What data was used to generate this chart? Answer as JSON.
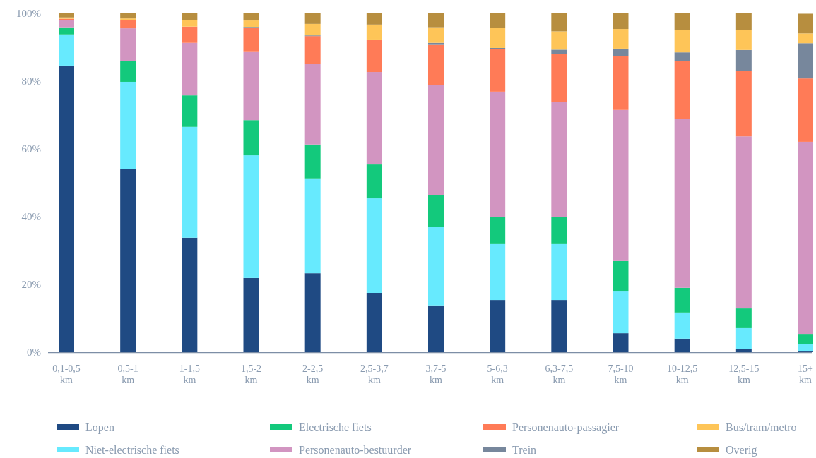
{
  "chart_data": {
    "type": "bar",
    "stacked": true,
    "categories": [
      "0,1-0,5 km",
      "0,5-1 km",
      "1-1,5 km",
      "1,5-2 km",
      "2-2,5 km",
      "2,5-3,7 km",
      "3,7-5 km",
      "5-6,3 km",
      "6,3-7,5 km",
      "7,5-10 km",
      "10-12,5 km",
      "12,5-15 km",
      "15+ km"
    ],
    "series": [
      {
        "name": "Lopen",
        "color": "#1f4a83",
        "values": [
          84.6,
          54.0,
          33.8,
          21.9,
          23.3,
          17.5,
          13.8,
          15.4,
          15.4,
          5.6,
          4.0,
          1.0,
          0.2
        ]
      },
      {
        "name": "Niet-electrische fiets",
        "color": "#67eafe",
        "values": [
          9.2,
          25.8,
          32.7,
          36.2,
          28.0,
          27.9,
          23.1,
          16.5,
          16.5,
          12.3,
          7.7,
          6.1,
          2.3
        ]
      },
      {
        "name": "Electrische fiets",
        "color": "#13c97c",
        "values": [
          2.1,
          6.2,
          9.3,
          10.4,
          10.0,
          10.0,
          9.4,
          8.1,
          8.1,
          9.0,
          7.3,
          5.8,
          2.9
        ]
      },
      {
        "name": "Personenauto-bestuurder",
        "color": "#d295c1",
        "values": [
          2.1,
          9.6,
          15.5,
          20.3,
          23.9,
          27.3,
          32.5,
          36.9,
          33.8,
          44.6,
          49.8,
          50.8,
          56.7
        ]
      },
      {
        "name": "Personenauto-passagier",
        "color": "#ff7b57",
        "values": [
          0.4,
          2.5,
          4.8,
          6.9,
          8.1,
          9.6,
          11.9,
          12.5,
          14.2,
          16.0,
          17.2,
          19.4,
          18.7
        ]
      },
      {
        "name": "Trein",
        "color": "#77879c",
        "values": [
          0,
          0,
          0,
          0.3,
          0.2,
          0,
          0.6,
          0.4,
          1.3,
          2.1,
          2.5,
          6.1,
          10.4
        ]
      },
      {
        "name": "Bus/tram/metro",
        "color": "#fec558",
        "values": [
          0.4,
          0.4,
          1.9,
          1.9,
          3.4,
          4.4,
          4.6,
          6.0,
          5.4,
          5.8,
          6.5,
          5.8,
          2.9
        ]
      },
      {
        "name": "Overig",
        "color": "#b78e3f",
        "values": [
          1.3,
          1.5,
          2.1,
          2.1,
          3.1,
          3.3,
          4.2,
          4.2,
          5.4,
          4.6,
          5.0,
          5.0,
          5.8
        ]
      }
    ],
    "ylim": [
      0,
      100
    ],
    "yticks": [
      {
        "value": 0,
        "label": "0%"
      },
      {
        "value": 20,
        "label": "20%"
      },
      {
        "value": 40,
        "label": "40%"
      },
      {
        "value": 60,
        "label": "60%"
      },
      {
        "value": 80,
        "label": "80%"
      },
      {
        "value": 100,
        "label": "100%"
      }
    ],
    "legend": "bottom",
    "grid": false
  }
}
